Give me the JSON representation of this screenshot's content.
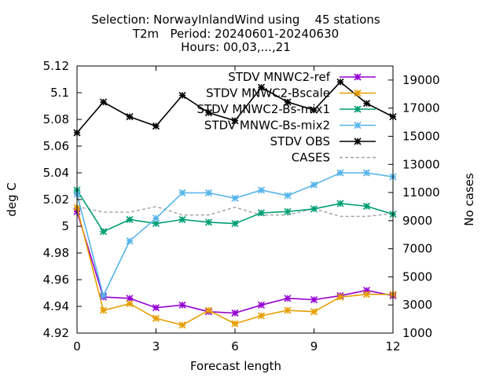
{
  "chart_data": {
    "type": "line",
    "title_lines": [
      "Selection: NorwayInlandWind using    45 stations",
      "T2m   Period: 20240601-20240630",
      "Hours: 00,03,...,21"
    ],
    "xlabel": "Forecast length",
    "ylabel": "deg C",
    "y2label": "No cases",
    "xlim": [
      0,
      12
    ],
    "ylim": [
      4.92,
      5.12
    ],
    "y2lim": [
      1000,
      20000
    ],
    "x_ticks": [
      0,
      3,
      6,
      9,
      12
    ],
    "y_ticks": [
      4.92,
      4.94,
      4.96,
      4.98,
      5,
      5.02,
      5.04,
      5.06,
      5.08,
      5.1,
      5.12
    ],
    "y_tick_labels": [
      "4.92",
      "4.94",
      "4.96",
      "4.98",
      "5",
      "5.02",
      "5.04",
      "5.06",
      "5.08",
      "5.1",
      "5.12"
    ],
    "y2_ticks": [
      1000,
      3000,
      5000,
      7000,
      9000,
      11000,
      13000,
      15000,
      17000,
      19000
    ],
    "grid": false,
    "legend_position": "top-right",
    "x": [
      0,
      1,
      2,
      3,
      4,
      5,
      6,
      7,
      8,
      9,
      10,
      11,
      12
    ],
    "series": [
      {
        "name": "STDV MNWC2-ref",
        "color": "#9400d3",
        "axis": "y1",
        "style": "solid",
        "values": [
          5.011,
          4.947,
          4.946,
          4.939,
          4.941,
          4.936,
          4.935,
          4.941,
          4.946,
          4.945,
          4.948,
          4.952,
          4.948
        ]
      },
      {
        "name": "STDV MNWC2-Bscale",
        "color": "#e69f00",
        "axis": "y1",
        "style": "solid",
        "values": [
          5.014,
          4.937,
          4.942,
          4.931,
          4.926,
          4.937,
          4.927,
          4.933,
          4.937,
          4.936,
          4.947,
          4.949,
          4.949
        ]
      },
      {
        "name": "STDV MNWC2-Bs-mix1",
        "color": "#009e73",
        "axis": "y1",
        "style": "solid",
        "values": [
          5.027,
          4.996,
          5.005,
          5.002,
          5.005,
          5.003,
          5.002,
          5.01,
          5.011,
          5.013,
          5.017,
          5.015,
          5.009
        ]
      },
      {
        "name": "STDV MNWC-Bs-mix2",
        "color": "#56b4e9",
        "axis": "y1",
        "style": "solid",
        "values": [
          5.024,
          4.948,
          4.989,
          5.006,
          5.025,
          5.025,
          5.021,
          5.027,
          5.023,
          5.031,
          5.04,
          5.04,
          5.037
        ]
      },
      {
        "name": "STDV OBS",
        "color": "#000000",
        "axis": "y1",
        "style": "solid",
        "values": [
          5.07,
          5.093,
          5.082,
          5.075,
          5.098,
          5.085,
          5.079,
          5.104,
          5.093,
          5.087,
          5.108,
          5.092,
          5.082
        ]
      },
      {
        "name": "CASES",
        "color": "#a0a0a0",
        "axis": "y2",
        "style": "dashed",
        "values": [
          10000,
          9600,
          9600,
          10000,
          9400,
          9400,
          9950,
          9400,
          9400,
          9850,
          9300,
          9300,
          9500
        ]
      }
    ]
  }
}
